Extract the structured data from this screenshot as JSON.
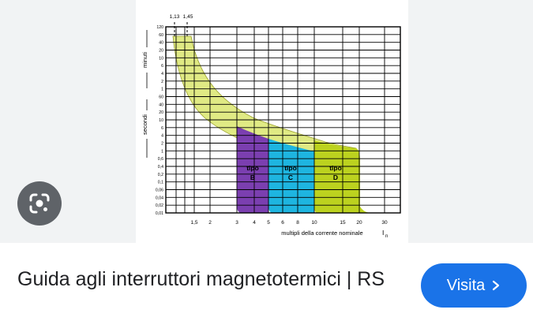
{
  "result": {
    "title": "Guida agli interruttori magnetotermici | RS",
    "visit_label": "Visita",
    "icons": {
      "lens": "google-lens-icon",
      "chevron": "chevron-right-icon"
    }
  },
  "chart_data": {
    "type": "area",
    "xlabel": "multipli della corrente nominale",
    "xlabel_symbol": "I",
    "xlabel_subscript": "n",
    "x_ticks": [
      "1,5",
      "2",
      "3",
      "4",
      "5",
      "6",
      "8",
      "10",
      "15",
      "20",
      "30"
    ],
    "top_markers": [
      "1,13",
      "1,45"
    ],
    "y_ticks_minutes": [
      "120",
      "60",
      "40",
      "20",
      "10",
      "6",
      "4",
      "2",
      "1"
    ],
    "y_ticks_seconds": [
      "60",
      "40",
      "20",
      "10",
      "6",
      "4",
      "2",
      "1",
      "0,6",
      "0,4",
      "0,2",
      "0,1",
      "0,06",
      "0,04",
      "0,02",
      "0,01"
    ],
    "ylabel_minutes": "minuti",
    "ylabel_seconds": "secondi",
    "series": [
      {
        "name": "tipo B",
        "label_top": "tipo",
        "label_bottom": "B",
        "x_range": [
          3,
          5
        ],
        "color": "#7b3fb0"
      },
      {
        "name": "tipo C",
        "label_top": "tipo",
        "label_bottom": "C",
        "x_range": [
          5,
          10
        ],
        "color": "#1eb5e0"
      },
      {
        "name": "tipo D",
        "label_top": "tipo",
        "label_bottom": "D",
        "x_range": [
          10,
          20
        ],
        "color": "#bcd21f"
      }
    ],
    "thermal_band_color": "#e0ea84"
  }
}
